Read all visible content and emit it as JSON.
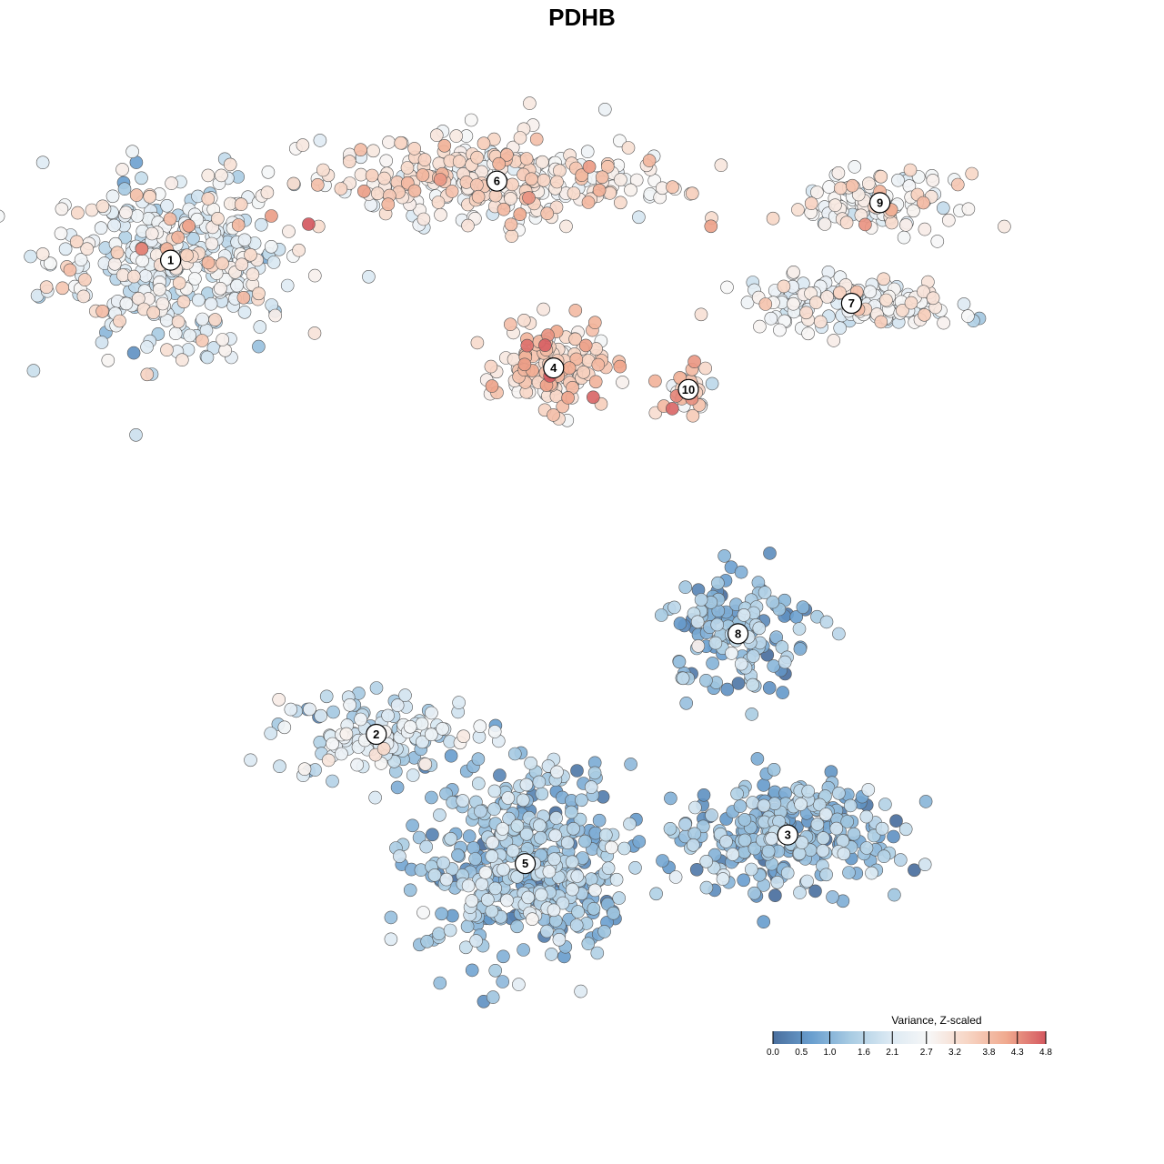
{
  "title": "PDHB",
  "chart_data": {
    "type": "scatter",
    "title": "PDHB",
    "xlabel": "",
    "ylabel": "",
    "grid": false,
    "legend_placement": "bottom-right",
    "color_scale": {
      "title": "Variance, Z-scaled",
      "ticks": [
        "0.0",
        "0.5",
        "1.0",
        "1.6",
        "2.1",
        "2.7",
        "3.2",
        "3.8",
        "4.3",
        "4.8"
      ],
      "tick_values": [
        0.0,
        0.5,
        1.0,
        1.6,
        2.1,
        2.7,
        3.2,
        3.8,
        4.3,
        4.8
      ],
      "range": [
        0.0,
        4.8
      ],
      "colors": [
        "#4a6f9e",
        "#6a9fcf",
        "#a9cce3",
        "#dbe9f3",
        "#f7f7f7",
        "#f7d5c4",
        "#f0a98e",
        "#d4585f"
      ]
    },
    "clusters": [
      {
        "label": "1",
        "x": -5.8,
        "y": 4.1,
        "sx": 1.55,
        "sy": 1.1,
        "n": 380,
        "mean": 2.4,
        "sd": 0.65
      },
      {
        "label": "2",
        "x": -2.9,
        "y": -2.5,
        "sx": 1.3,
        "sy": 0.55,
        "n": 130,
        "mean": 1.9,
        "sd": 0.6
      },
      {
        "label": "3",
        "x": 2.9,
        "y": -3.9,
        "sx": 1.35,
        "sy": 0.7,
        "n": 290,
        "mean": 1.05,
        "sd": 0.5
      },
      {
        "label": "4",
        "x": -0.4,
        "y": 2.6,
        "sx": 0.65,
        "sy": 0.5,
        "n": 160,
        "mean": 3.3,
        "sd": 0.55
      },
      {
        "label": "5",
        "x": -0.8,
        "y": -4.3,
        "sx": 1.35,
        "sy": 1.25,
        "n": 430,
        "mean": 1.25,
        "sd": 0.55
      },
      {
        "label": "6",
        "x": -1.2,
        "y": 5.2,
        "sx": 2.3,
        "sy": 0.55,
        "n": 290,
        "mean": 3.0,
        "sd": 0.55
      },
      {
        "label": "7",
        "x": 3.8,
        "y": 3.5,
        "sx": 1.35,
        "sy": 0.32,
        "n": 150,
        "mean": 2.5,
        "sd": 0.5
      },
      {
        "label": "8",
        "x": 2.2,
        "y": -1.1,
        "sx": 1.0,
        "sy": 0.75,
        "n": 140,
        "mean": 1.1,
        "sd": 0.55
      },
      {
        "label": "9",
        "x": 4.2,
        "y": 4.9,
        "sx": 1.0,
        "sy": 0.35,
        "n": 100,
        "mean": 2.8,
        "sd": 0.5
      },
      {
        "label": "10",
        "x": 1.5,
        "y": 2.3,
        "sx": 0.35,
        "sy": 0.3,
        "n": 35,
        "mean": 3.3,
        "sd": 0.7
      }
    ]
  }
}
